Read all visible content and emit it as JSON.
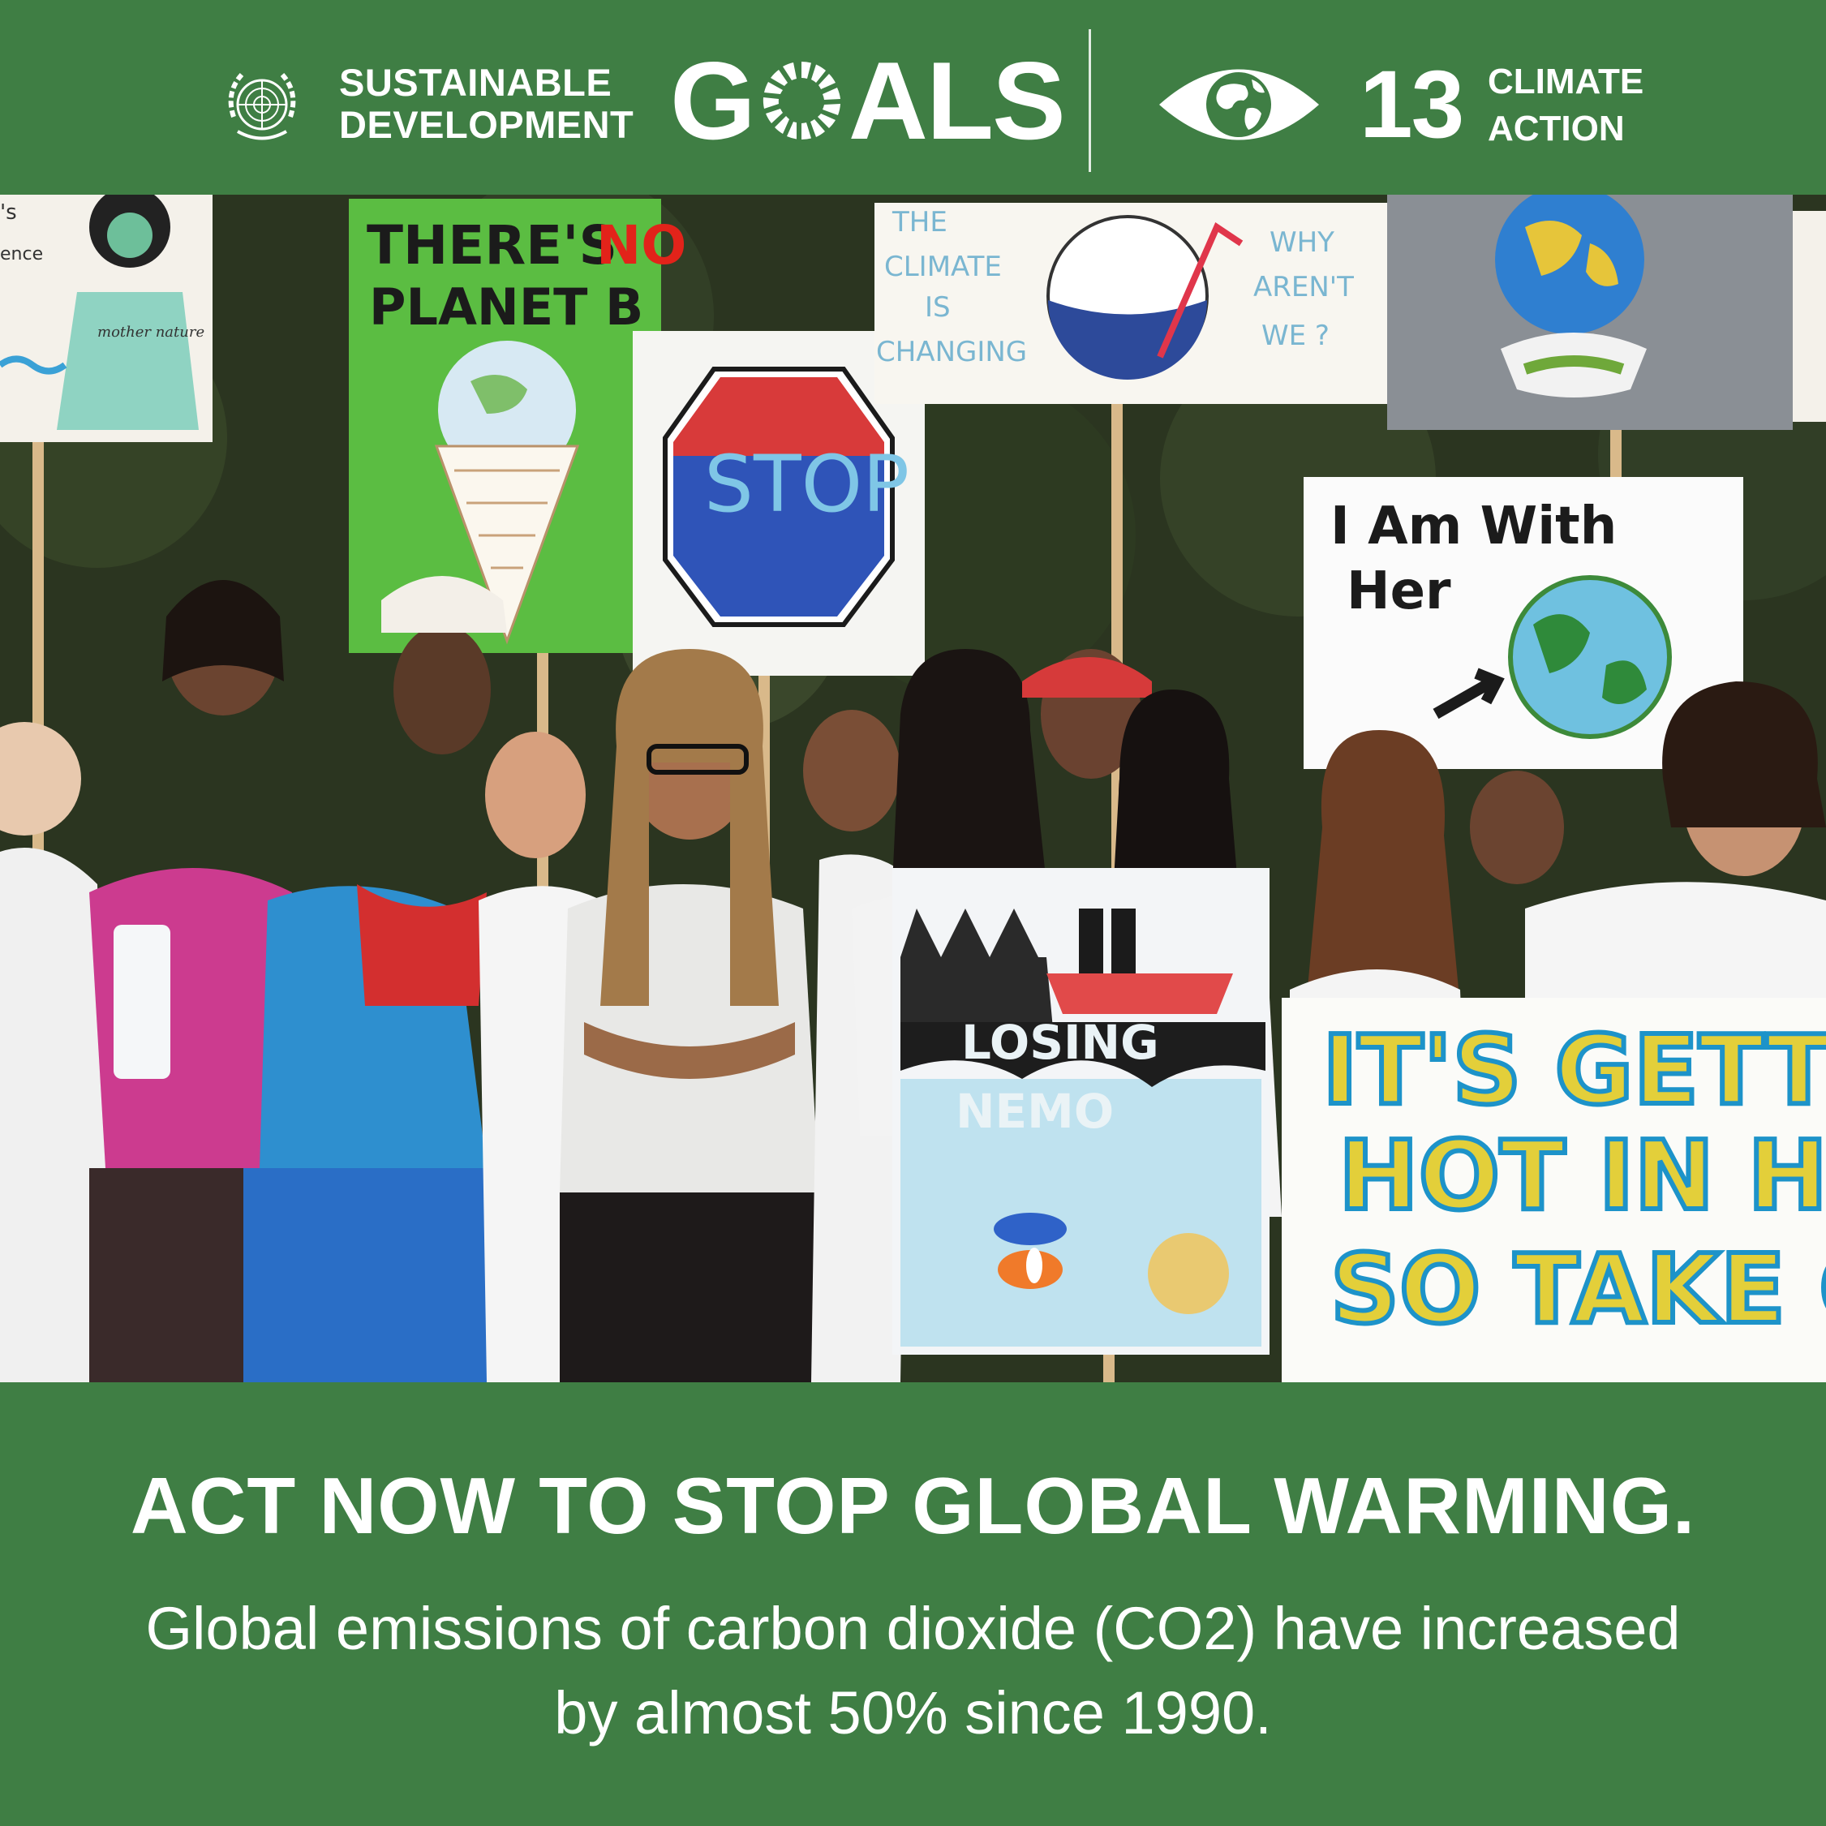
{
  "header": {
    "sdg_line1": "SUSTAINABLE",
    "sdg_line2": "DEVELOPMENT",
    "goals_g": "G",
    "goals_rest": "ALS",
    "goal_number": "13",
    "goal_name_line1": "CLIMATE",
    "goal_name_line2": "ACTION",
    "emblem_icon": "un-emblem-icon",
    "goal_icon": "eye-globe-icon",
    "colors": {
      "background": "#3f7e44",
      "text": "#ffffff"
    }
  },
  "photo": {
    "signs": {
      "planet_b_line1": "THERE'S",
      "planet_b_no": "NO",
      "planet_b_line2": "PLANET B",
      "stop": "STOP",
      "climate_left_1": "THE",
      "climate_left_2": "CLIMATE",
      "climate_left_3": "IS",
      "climate_left_4": "CHANGING",
      "climate_right_1": "WHY",
      "climate_right_2": "AREN'T",
      "climate_right_3": "WE ?",
      "with_her_1": "I Am With",
      "with_her_2": "Her",
      "nemo_1": "LOSING",
      "nemo_2": "NEMO",
      "hot_1": "IT'S GETTIN",
      "hot_2": "HOT  IN HER",
      "hot_3": "SO TAKE OF",
      "left_partial_1": "'s",
      "left_partial_2": "ence",
      "shirt_text": "mother nature"
    }
  },
  "footer": {
    "headline": "ACT NOW TO STOP GLOBAL WARMING.",
    "line1": "Global emissions of carbon dioxide (CO2) have increased",
    "line2": "by almost 50% since 1990."
  }
}
